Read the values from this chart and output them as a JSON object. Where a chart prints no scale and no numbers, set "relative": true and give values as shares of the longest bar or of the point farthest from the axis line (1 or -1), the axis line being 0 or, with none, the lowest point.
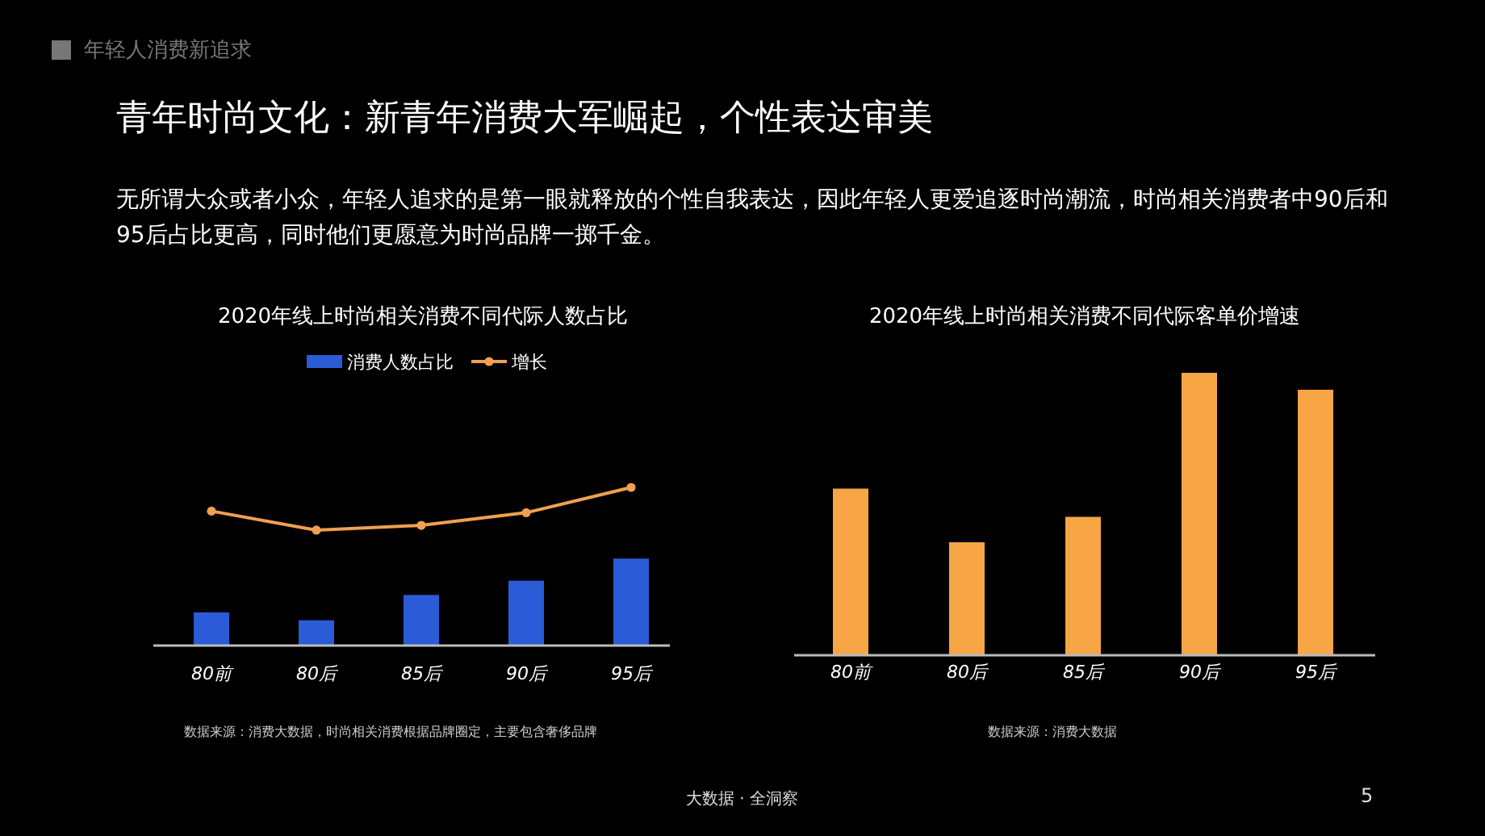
{
  "chart_data": [
    {
      "type": "other",
      "title": "青年时尚文化：新青年消费大军崛起，个性表达审美",
      "annotations": [
        "年轻人消费新追求",
        "无所谓大众或者小众，年轻人追求的是第一眼就释放的个性自我表达，因此年轻人更爱追逐时尚潮流，时尚相关消费者中90后和95后占比更高，同时他们更愿意为时尚品牌一掷千金。",
        "大数据 · 全洞察",
        "5"
      ]
    },
    {
      "type": "bar",
      "title": "2020年线上时尚相关消费不同代际人数占比",
      "categories": [
        "80前",
        "80后",
        "85后",
        "90后",
        "95后"
      ],
      "relative": true,
      "legend": "top",
      "marker": "circle",
      "series": [
        {
          "name": "消费人数占比",
          "color": "#2b5bd6",
          "values": [
            0.21,
            0.16,
            0.32,
            0.41,
            0.55
          ]
        },
        {
          "name": "增长",
          "type": "line",
          "color": "#f0a050",
          "values": [
            0.85,
            0.73,
            0.76,
            0.84,
            1
          ]
        }
      ],
      "annotations": [
        "数据来源：消费大数据，时尚相关消费根据品牌圈定，主要包含奢侈品牌"
      ]
    },
    {
      "type": "bar",
      "title": "2020年线上时尚相关消费不同代际客单价增速",
      "categories": [
        "80前",
        "80后",
        "85后",
        "90后",
        "95后"
      ],
      "relative": true,
      "series": [
        {
          "color": "#f7a545",
          "values": [
            0.59,
            0.4,
            0.49,
            1,
            0.94
          ]
        }
      ],
      "annotations": [
        "数据来源：消费大数据"
      ]
    }
  ]
}
